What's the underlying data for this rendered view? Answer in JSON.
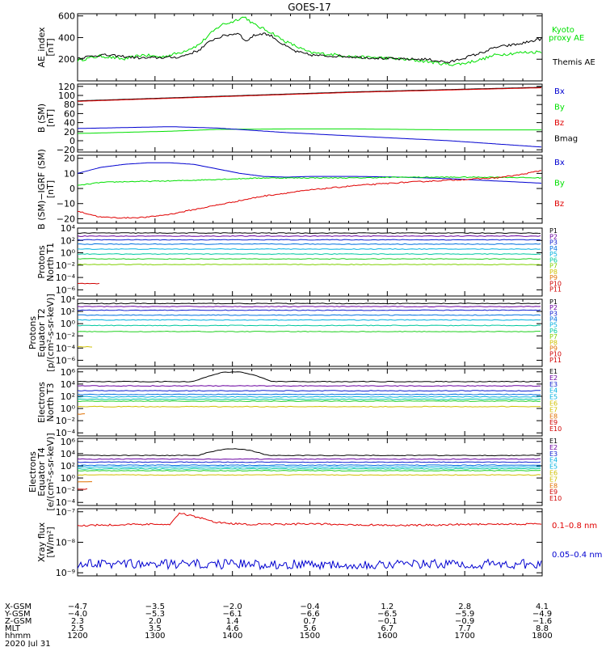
{
  "title": "GOES-17",
  "colors": {
    "black": "#000000",
    "green": "#00e000",
    "blue": "#0000d0",
    "red": "#e00000",
    "p": [
      "#000000",
      "#6a00a0",
      "#1020d0",
      "#0070e0",
      "#00b0e0",
      "#00c8a0",
      "#20d020",
      "#80d000",
      "#d0c000",
      "#e07000",
      "#d00000"
    ]
  },
  "chart_data": [
    {
      "type": "line",
      "name": "ae",
      "ylabel": [
        "AE_index",
        "[nT]"
      ],
      "ylim": [
        0,
        620
      ],
      "log": false,
      "ticks": [
        {
          "v": 200,
          "l": "200"
        },
        {
          "v": 400,
          "l": "400"
        },
        {
          "v": 600,
          "l": "600"
        }
      ],
      "legend": [
        {
          "label": "Kyoto",
          "color": "green"
        },
        {
          "label": "proxy AE",
          "color": "green"
        },
        {
          "label": "Themis AE",
          "color": "black"
        }
      ],
      "series": [
        {
          "name": "Kyoto proxy AE",
          "color": "green",
          "x": [
            0,
            0.05,
            0.1,
            0.14,
            0.18,
            0.22,
            0.26,
            0.29,
            0.31,
            0.33,
            0.35,
            0.36,
            0.38,
            0.4,
            0.42,
            0.44,
            0.47,
            0.5,
            0.53,
            0.56,
            0.6,
            0.65,
            0.7,
            0.75,
            0.8,
            0.83,
            0.87,
            0.9,
            0.95,
            1
          ],
          "y": [
            190,
            230,
            200,
            240,
            220,
            260,
            330,
            450,
            520,
            540,
            580,
            590,
            520,
            480,
            440,
            380,
            320,
            260,
            250,
            240,
            220,
            215,
            200,
            180,
            150,
            160,
            200,
            240,
            260,
            270
          ],
          "noise": 14
        },
        {
          "name": "Themis AE",
          "color": "black",
          "x": [
            0,
            0.05,
            0.1,
            0.14,
            0.18,
            0.22,
            0.26,
            0.29,
            0.31,
            0.33,
            0.35,
            0.36,
            0.38,
            0.4,
            0.42,
            0.44,
            0.47,
            0.5,
            0.53,
            0.56,
            0.6,
            0.65,
            0.7,
            0.75,
            0.8,
            0.83,
            0.87,
            0.9,
            0.95,
            1
          ],
          "y": [
            210,
            240,
            225,
            210,
            215,
            220,
            280,
            380,
            410,
            430,
            440,
            360,
            420,
            440,
            410,
            340,
            270,
            240,
            230,
            230,
            220,
            210,
            200,
            200,
            170,
            210,
            260,
            310,
            340,
            390
          ],
          "noise": 12
        }
      ]
    },
    {
      "type": "line",
      "name": "bsm",
      "ylabel": [
        "B (SM)",
        "[nT]"
      ],
      "ylim": [
        -25,
        125
      ],
      "log": false,
      "ticks": [
        {
          "v": -20,
          "l": "−20"
        },
        {
          "v": 0,
          "l": "0"
        },
        {
          "v": 20,
          "l": "20"
        },
        {
          "v": 40,
          "l": "40"
        },
        {
          "v": 60,
          "l": "60"
        },
        {
          "v": 80,
          "l": "80"
        },
        {
          "v": 100,
          "l": "100"
        },
        {
          "v": 120,
          "l": "120"
        }
      ],
      "legend": [
        {
          "label": "Bx",
          "color": "blue"
        },
        {
          "label": "By",
          "color": "green"
        },
        {
          "label": "Bz",
          "color": "red"
        },
        {
          "label": "Bmag",
          "color": "black"
        }
      ],
      "series": [
        {
          "name": "Bmag",
          "color": "black",
          "x": [
            0,
            0.3,
            0.6,
            1
          ],
          "y": [
            88,
            98,
            108,
            118
          ],
          "noise": 0
        },
        {
          "name": "Bz",
          "color": "red",
          "x": [
            0,
            0.3,
            0.6,
            1
          ],
          "y": [
            87,
            97,
            107,
            117
          ],
          "noise": 0
        },
        {
          "name": "By",
          "color": "green",
          "x": [
            0,
            0.2,
            0.3,
            0.45,
            0.6,
            0.8,
            1
          ],
          "y": [
            16,
            21,
            25,
            26,
            26,
            24,
            24
          ],
          "noise": 0
        },
        {
          "name": "Bx",
          "color": "blue",
          "x": [
            0,
            0.2,
            0.3,
            0.45,
            0.6,
            0.8,
            1
          ],
          "y": [
            27,
            31,
            28,
            18,
            10,
            0,
            -14
          ],
          "noise": 0
        }
      ]
    },
    {
      "type": "line",
      "name": "bigrf",
      "ylabel": [
        "B (SM)−IGRF (SM)",
        "[nT]"
      ],
      "ylim": [
        -23,
        22
      ],
      "log": false,
      "ticks": [
        {
          "v": -20,
          "l": "−20"
        },
        {
          "v": -10,
          "l": "−10"
        },
        {
          "v": 0,
          "l": "0"
        },
        {
          "v": 10,
          "l": "10"
        },
        {
          "v": 20,
          "l": "20"
        }
      ],
      "legend": [
        {
          "label": "Bx",
          "color": "blue"
        },
        {
          "label": "By",
          "color": "green"
        },
        {
          "label": "Bz",
          "color": "red"
        }
      ],
      "series": [
        {
          "name": "Bx",
          "color": "blue",
          "x": [
            0,
            0.05,
            0.1,
            0.15,
            0.2,
            0.25,
            0.3,
            0.35,
            0.4,
            0.45,
            0.5,
            0.6,
            0.7,
            0.8,
            0.9,
            1
          ],
          "y": [
            10,
            14,
            16,
            17,
            17,
            16,
            13,
            10,
            8,
            7.5,
            8,
            8,
            7.5,
            6.5,
            5,
            3.5
          ],
          "noise": 0
        },
        {
          "name": "By",
          "color": "green",
          "x": [
            0,
            0.05,
            0.1,
            0.2,
            0.3,
            0.4,
            0.5,
            0.6,
            0.7,
            0.8,
            0.9,
            1
          ],
          "y": [
            2,
            4,
            4.5,
            5,
            6,
            7,
            7,
            7,
            7.5,
            7.5,
            7.5,
            7
          ],
          "noise": 0.3
        },
        {
          "name": "Bz",
          "color": "red",
          "x": [
            0,
            0.05,
            0.1,
            0.15,
            0.2,
            0.25,
            0.3,
            0.35,
            0.4,
            0.45,
            0.5,
            0.6,
            0.7,
            0.8,
            0.9,
            0.95,
            1
          ],
          "y": [
            -15,
            -19,
            -19.5,
            -19,
            -17,
            -14,
            -11,
            -8,
            -5,
            -3,
            -1,
            2,
            4,
            5.5,
            7,
            9,
            12
          ],
          "noise": 0.4
        }
      ]
    },
    {
      "type": "line",
      "name": "pn",
      "log": true,
      "ylabel": [
        "Protons",
        "North T1"
      ],
      "ylim": [
        -7,
        4
      ],
      "ticks": [
        {
          "v": 4,
          "l": "10⁴"
        },
        {
          "v": 2,
          "l": "10²"
        },
        {
          "v": 0,
          "l": "10⁰"
        },
        {
          "v": -2,
          "l": "10⁻²"
        },
        {
          "v": -4,
          "l": "10⁻⁴"
        },
        {
          "v": -6,
          "l": "10⁻⁶"
        }
      ],
      "legend": [
        {
          "label": "P1",
          "c": 0
        },
        {
          "label": "P2",
          "c": 1
        },
        {
          "label": "P3",
          "c": 2
        },
        {
          "label": "P4",
          "c": 3
        },
        {
          "label": "P5",
          "c": 4
        },
        {
          "label": "P6",
          "c": 5
        },
        {
          "label": "P7",
          "c": 7
        },
        {
          "label": "P8",
          "c": 8
        },
        {
          "label": "P9",
          "c": 9
        },
        {
          "label": "P10",
          "c": 10
        },
        {
          "label": "P11",
          "c": 10
        }
      ],
      "levels": [
        3.2,
        2.7,
        2.1,
        1.4,
        0.6,
        -0.2,
        -1.0,
        -1.9,
        -3.4,
        -5.0
      ],
      "lcolors": [
        0,
        1,
        2,
        3,
        4,
        5,
        6,
        7,
        8,
        10
      ]
    },
    {
      "type": "line",
      "name": "pe",
      "log": true,
      "ylabel": [
        "Protons",
        "Equator T2",
        "[p/(cm²-s-sr-keV)]"
      ],
      "ylim": [
        -7,
        4
      ],
      "ticks": [
        {
          "v": 4,
          "l": "10⁴"
        },
        {
          "v": 2,
          "l": "10²"
        },
        {
          "v": 0,
          "l": "10⁰"
        },
        {
          "v": -2,
          "l": "10⁻²"
        },
        {
          "v": -4,
          "l": "10⁻⁴"
        },
        {
          "v": -6,
          "l": "10⁻⁶"
        }
      ],
      "legend": [
        {
          "label": "P1",
          "c": 0
        },
        {
          "label": "P2",
          "c": 1
        },
        {
          "label": "P3",
          "c": 2
        },
        {
          "label": "P4",
          "c": 3
        },
        {
          "label": "P5",
          "c": 4
        },
        {
          "label": "P6",
          "c": 5
        },
        {
          "label": "P7",
          "c": 7
        },
        {
          "label": "P8",
          "c": 8
        },
        {
          "label": "P9",
          "c": 9
        },
        {
          "label": "P10",
          "c": 10
        },
        {
          "label": "P11",
          "c": 10
        }
      ],
      "levels": [
        3.3,
        2.8,
        2.2,
        1.4,
        0.6,
        -0.3,
        -1.3,
        -2.3,
        -3.8
      ],
      "lcolors": [
        0,
        1,
        2,
        3,
        4,
        5,
        6,
        7,
        8
      ]
    },
    {
      "type": "line",
      "name": "en",
      "log": true,
      "ylabel": [
        "Electrons",
        "North T3"
      ],
      "ylim": [
        -4.5,
        6.5
      ],
      "ticks": [
        {
          "v": 6,
          "l": "10⁶"
        },
        {
          "v": 4,
          "l": "10⁴"
        },
        {
          "v": 2,
          "l": "10²"
        },
        {
          "v": 0,
          "l": "10⁰"
        },
        {
          "v": -2,
          "l": "10⁻²"
        },
        {
          "v": -4,
          "l": "10⁻⁴"
        }
      ],
      "legend": [
        {
          "label": "E1",
          "c": 0
        },
        {
          "label": "E2",
          "c": 1
        },
        {
          "label": "E3",
          "c": 2
        },
        {
          "label": "E4",
          "c": 4
        },
        {
          "label": "E5",
          "c": 4
        },
        {
          "label": "E6",
          "c": 8
        },
        {
          "label": "E7",
          "c": 8
        },
        {
          "label": "E8",
          "c": 9
        },
        {
          "label": "E9",
          "c": 10
        },
        {
          "label": "E10",
          "c": 10
        }
      ],
      "levels": [
        4.4,
        3.7,
        2.9,
        2.3,
        1.9,
        1.5,
        1.2,
        0.3,
        -0.9,
        -1.9
      ],
      "lcolors": [
        0,
        1,
        2,
        3,
        4,
        5,
        6,
        8,
        9,
        10
      ],
      "bump": {
        "from": 0.25,
        "to": 0.52,
        "amp": 1.6
      }
    },
    {
      "type": "line",
      "name": "ee",
      "log": true,
      "ylabel": [
        "Electrons",
        "Equator T4",
        "[e/(cm²-s-sr-keV)]"
      ],
      "ylim": [
        -4.5,
        6.5
      ],
      "ticks": [
        {
          "v": 6,
          "l": "10⁶"
        },
        {
          "v": 4,
          "l": "10⁴"
        },
        {
          "v": 2,
          "l": "10²"
        },
        {
          "v": 0,
          "l": "10⁰"
        },
        {
          "v": -2,
          "l": "10⁻²"
        },
        {
          "v": -4,
          "l": "10⁻⁴"
        }
      ],
      "legend": [
        {
          "label": "E1",
          "c": 0
        },
        {
          "label": "E2",
          "c": 1
        },
        {
          "label": "E3",
          "c": 2
        },
        {
          "label": "E4",
          "c": 4
        },
        {
          "label": "E5",
          "c": 4
        },
        {
          "label": "E6",
          "c": 8
        },
        {
          "label": "E7",
          "c": 8
        },
        {
          "label": "E8",
          "c": 9
        },
        {
          "label": "E9",
          "c": 10
        },
        {
          "label": "E10",
          "c": 10
        }
      ],
      "levels": [
        3.7,
        3.1,
        2.6,
        2.1,
        1.8,
        1.5,
        1.2,
        0.5,
        -0.6,
        -1.8
      ],
      "lcolors": [
        0,
        1,
        2,
        3,
        4,
        5,
        6,
        8,
        9,
        10
      ],
      "bump": {
        "from": 0.26,
        "to": 0.5,
        "amp": 1.1
      }
    },
    {
      "type": "line",
      "name": "xray",
      "log": true,
      "ylabel": [
        "Xray flux",
        "[W/m²]"
      ],
      "ylim": [
        -9.1,
        -6.9
      ],
      "ticks": [
        {
          "v": -7,
          "l": "10⁻⁷"
        },
        {
          "v": -8,
          "l": "10⁻⁸"
        },
        {
          "v": -9,
          "l": "10⁻⁹"
        }
      ],
      "legend": [
        {
          "label": "0.1–0.8 nm",
          "color": "red"
        },
        {
          "label": "0.05–0.4 nm",
          "color": "blue"
        }
      ],
      "series": [
        {
          "name": "0.1–0.8 nm",
          "color": "red",
          "x": [
            0,
            0.1,
            0.2,
            0.21,
            0.22,
            0.25,
            0.3,
            0.35,
            0.4,
            0.5,
            0.6,
            0.7,
            0.8,
            0.9,
            1
          ],
          "y": [
            -7.45,
            -7.42,
            -7.4,
            -7.2,
            -7.05,
            -7.15,
            -7.35,
            -7.4,
            -7.42,
            -7.4,
            -7.42,
            -7.45,
            -7.42,
            -7.4,
            -7.4
          ],
          "noise": 0.03
        },
        {
          "name": "0.05–0.4 nm",
          "color": "blue",
          "x": [
            0,
            0.5,
            1
          ],
          "y": [
            -8.72,
            -8.72,
            -8.72
          ],
          "noise": 0.16
        }
      ]
    }
  ],
  "xaxis": {
    "row_labels": [
      "X-GSM",
      "Y-GSM",
      "Z-GSM",
      "MLT",
      "hhmm",
      "2020 Jul 31"
    ],
    "columns": [
      [
        "−4.7",
        "−4.0",
        "2.3",
        "2.5",
        "1200"
      ],
      [
        "−3.5",
        "−5.3",
        "2.0",
        "3.5",
        "1300"
      ],
      [
        "−2.0",
        "−6.1",
        "1.4",
        "4.6",
        "1400"
      ],
      [
        "−0.4",
        "−6.6",
        "0.7",
        "5.6",
        "1500"
      ],
      [
        "1.2",
        "−6.5",
        "−0.1",
        "6.7",
        "1600"
      ],
      [
        "2.8",
        "−5.9",
        "−0.9",
        "7.7",
        "1700"
      ],
      [
        "4.1",
        "−4.9",
        "−1.6",
        "8.8",
        "1800"
      ]
    ]
  }
}
